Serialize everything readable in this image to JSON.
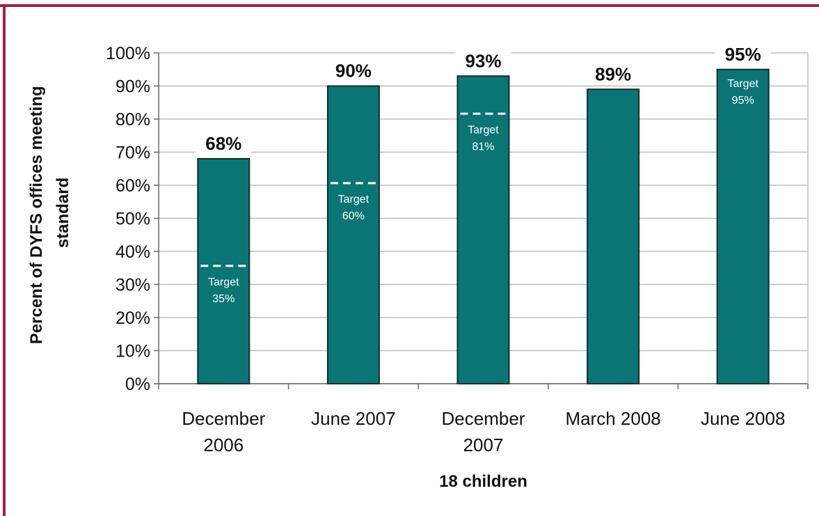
{
  "colors": {
    "bar": "#0b7575",
    "bar_stroke": "#0e2f2f",
    "border": "#9b2346",
    "grid": "#bdbdbd",
    "target_line": "#ffffff"
  },
  "chart_data": {
    "type": "bar",
    "categories": [
      [
        "December",
        "2006"
      ],
      [
        "June 2007"
      ],
      [
        "December",
        "2007"
      ],
      [
        "March 2008"
      ],
      [
        "June 2008"
      ]
    ],
    "values": [
      68,
      90,
      93,
      89,
      95
    ],
    "data_labels": [
      "68%",
      "90%",
      "93%",
      "89%",
      "95%"
    ],
    "targets": [
      {
        "value": 35,
        "label": "Target",
        "label_value": "35%"
      },
      {
        "value": 60,
        "label": "Target",
        "label_value": "60%"
      },
      {
        "value": 81,
        "label": "Target",
        "label_value": "81%"
      },
      null,
      {
        "value": 95,
        "label": "Target",
        "label_value": "95%"
      }
    ],
    "xlabel": "18 children",
    "ylabel_lines": [
      "Percent of DYFS offices meeting",
      "standard"
    ],
    "ylim": [
      0,
      100
    ],
    "yticks": [
      "0%",
      "10%",
      "20%",
      "30%",
      "40%",
      "50%",
      "60%",
      "70%",
      "80%",
      "90%",
      "100%"
    ],
    "grid": true,
    "legend": "none"
  }
}
